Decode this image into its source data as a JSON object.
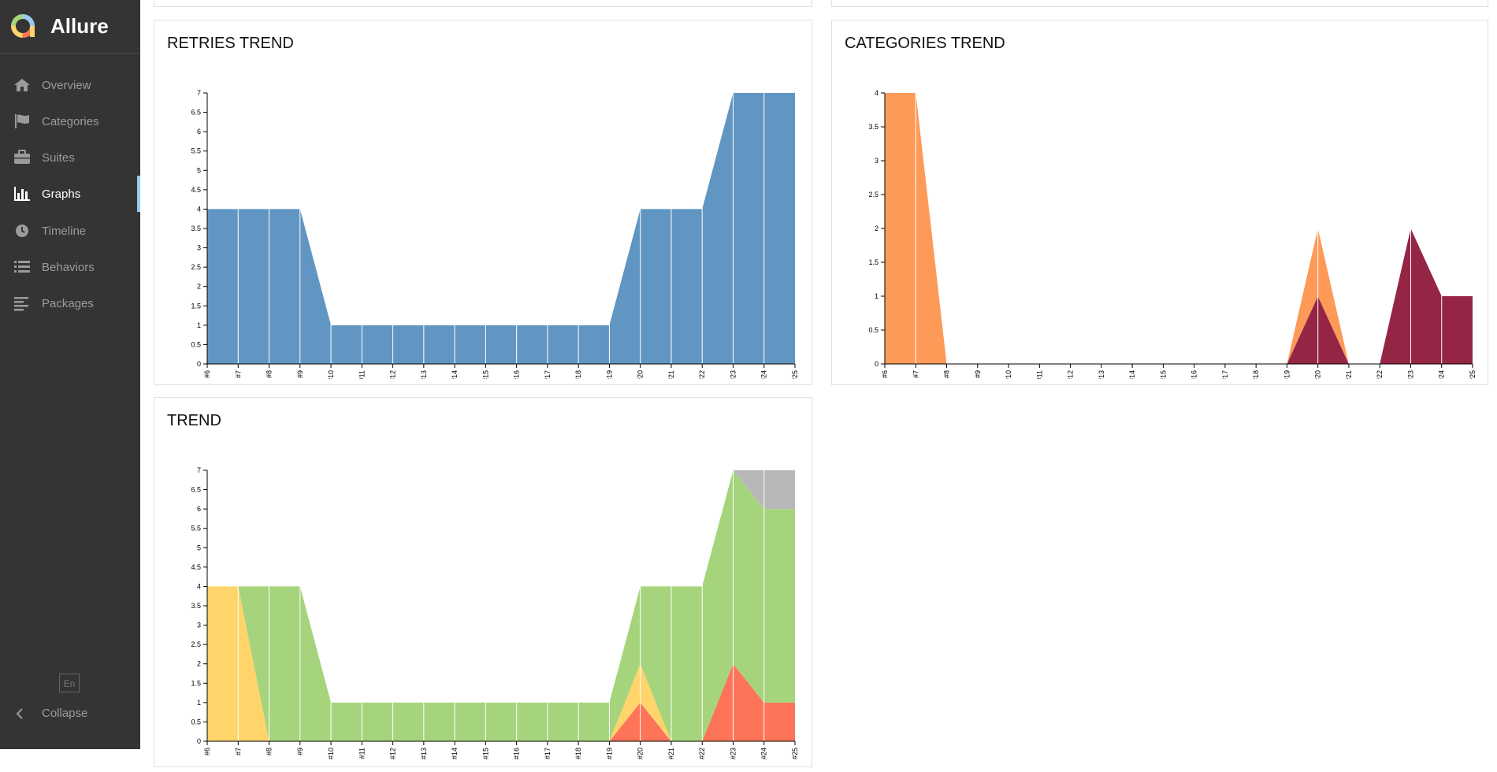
{
  "app": {
    "title": "Allure"
  },
  "nav": [
    {
      "label": "Overview",
      "icon": "home-icon",
      "active": false
    },
    {
      "label": "Categories",
      "icon": "flag-icon",
      "active": false
    },
    {
      "label": "Suites",
      "icon": "briefcase-icon",
      "active": false
    },
    {
      "label": "Graphs",
      "icon": "bar-chart-icon",
      "active": true
    },
    {
      "label": "Timeline",
      "icon": "clock-icon",
      "active": false
    },
    {
      "label": "Behaviors",
      "icon": "list-icon",
      "active": false
    },
    {
      "label": "Packages",
      "icon": "align-left-icon",
      "active": false
    }
  ],
  "footer": {
    "language": "En",
    "collapse_label": "Collapse"
  },
  "chart_data": [
    {
      "id": "retries",
      "title": "RETRIES TREND",
      "type": "area",
      "categories": [
        "#6",
        "#7",
        "#8",
        "#9",
        "#10",
        "#11",
        "#12",
        "#13",
        "#14",
        "#15",
        "#16",
        "#17",
        "#18",
        "#19",
        "#20",
        "#21",
        "#22",
        "#23",
        "#24",
        "#25"
      ],
      "ylim": [
        0,
        7
      ],
      "yticks": [
        "0",
        "0.5",
        "1",
        "1.5",
        "2",
        "2.5",
        "3",
        "3.5",
        "4",
        "4.5",
        "5",
        "5.5",
        "6",
        "6.5",
        "7"
      ],
      "series": [
        {
          "color": "#6196c2",
          "values": [
            4,
            4,
            4,
            4,
            1,
            1,
            1,
            1,
            1,
            1,
            1,
            1,
            1,
            1,
            4,
            4,
            4,
            7,
            7,
            7
          ]
        }
      ]
    },
    {
      "id": "categories",
      "title": "CATEGORIES TREND",
      "type": "area",
      "categories": [
        "#6",
        "#7",
        "#8",
        "#9",
        "#10",
        "#11",
        "#12",
        "#13",
        "#14",
        "#15",
        "#16",
        "#17",
        "#18",
        "#19",
        "#20",
        "#21",
        "#22",
        "#23",
        "#24",
        "#25"
      ],
      "ylim": [
        0,
        4
      ],
      "yticks": [
        "0",
        "0.5",
        "1",
        "1.5",
        "2",
        "2.5",
        "3",
        "3.5",
        "4"
      ],
      "series": [
        {
          "color": "#952545",
          "values": [
            0,
            0,
            0,
            0,
            0,
            0,
            0,
            0,
            0,
            0,
            0,
            0,
            0,
            0,
            1,
            0,
            0,
            2,
            1,
            1
          ]
        },
        {
          "color": "#fd9a58",
          "values": [
            4,
            4,
            0,
            0,
            0,
            0,
            0,
            0,
            0,
            0,
            0,
            0,
            0,
            0,
            1,
            0,
            0,
            0,
            0,
            0
          ]
        }
      ]
    },
    {
      "id": "trend",
      "title": "TREND",
      "type": "area",
      "categories": [
        "#6",
        "#7",
        "#8",
        "#9",
        "#10",
        "#11",
        "#12",
        "#13",
        "#14",
        "#15",
        "#16",
        "#17",
        "#18",
        "#19",
        "#20",
        "#21",
        "#22",
        "#23",
        "#24",
        "#25"
      ],
      "ylim": [
        0,
        7
      ],
      "yticks": [
        "0",
        "0.5",
        "1",
        "1.5",
        "2",
        "2.5",
        "3",
        "3.5",
        "4",
        "4.5",
        "5",
        "5.5",
        "6",
        "6.5",
        "7"
      ],
      "series": [
        {
          "color": "#fd7459",
          "values": [
            0,
            0,
            0,
            0,
            0,
            0,
            0,
            0,
            0,
            0,
            0,
            0,
            0,
            0,
            1,
            0,
            0,
            2,
            1,
            1
          ]
        },
        {
          "color": "#ffd46b",
          "values": [
            4,
            4,
            0,
            0,
            0,
            0,
            0,
            0,
            0,
            0,
            0,
            0,
            0,
            0,
            1,
            0,
            0,
            0,
            0,
            0
          ]
        },
        {
          "color": "#a6d47c",
          "values": [
            0,
            0,
            4,
            4,
            1,
            1,
            1,
            1,
            1,
            1,
            1,
            1,
            1,
            1,
            2,
            4,
            4,
            5,
            5,
            5
          ]
        },
        {
          "color": "#b8b8b8",
          "values": [
            0,
            0,
            0,
            0,
            0,
            0,
            0,
            0,
            0,
            0,
            0,
            0,
            0,
            0,
            0,
            0,
            0,
            0,
            1,
            1
          ]
        }
      ]
    }
  ]
}
